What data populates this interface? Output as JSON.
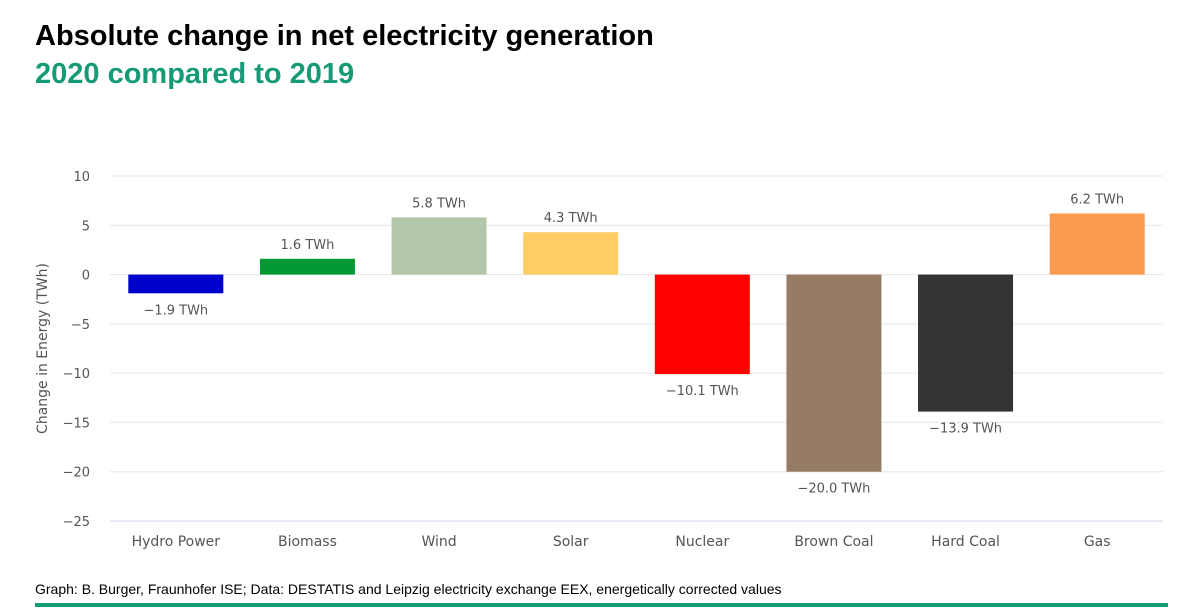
{
  "header": {
    "title": "Absolute change in net electricity generation",
    "subtitle": "2020 compared to 2019"
  },
  "footer": {
    "source": "Graph: B. Burger, Fraunhofer ISE; Data: DESTATIS and Leipzig electricity exchange EEX, energetically corrected values"
  },
  "chart_data": {
    "type": "bar",
    "title": "Absolute change in net electricity generation",
    "subtitle": "2020 compared to 2019",
    "ylabel": "Change in Energy (TWh)",
    "xlabel": "",
    "ylim": [
      -25,
      10
    ],
    "yticks": [
      10,
      5,
      0,
      -5,
      -10,
      -15,
      -20,
      -25
    ],
    "grid": true,
    "categories": [
      "Hydro Power",
      "Biomass",
      "Wind",
      "Solar",
      "Nuclear",
      "Brown Coal",
      "Hard Coal",
      "Gas"
    ],
    "values": [
      -1.9,
      1.6,
      5.8,
      4.3,
      -10.1,
      -20.0,
      -13.9,
      6.2
    ],
    "data_labels": [
      "−1.9 TWh",
      "1.6 TWh",
      "5.8 TWh",
      "4.3 TWh",
      "−10.1 TWh",
      "−20.0 TWh",
      "−13.9 TWh",
      "6.2 TWh"
    ],
    "colors": [
      "#0000cc",
      "#009933",
      "#b3c6a8",
      "#ffcc66",
      "#ff0000",
      "#967c64",
      "#333333",
      "#fa9b4e"
    ]
  }
}
